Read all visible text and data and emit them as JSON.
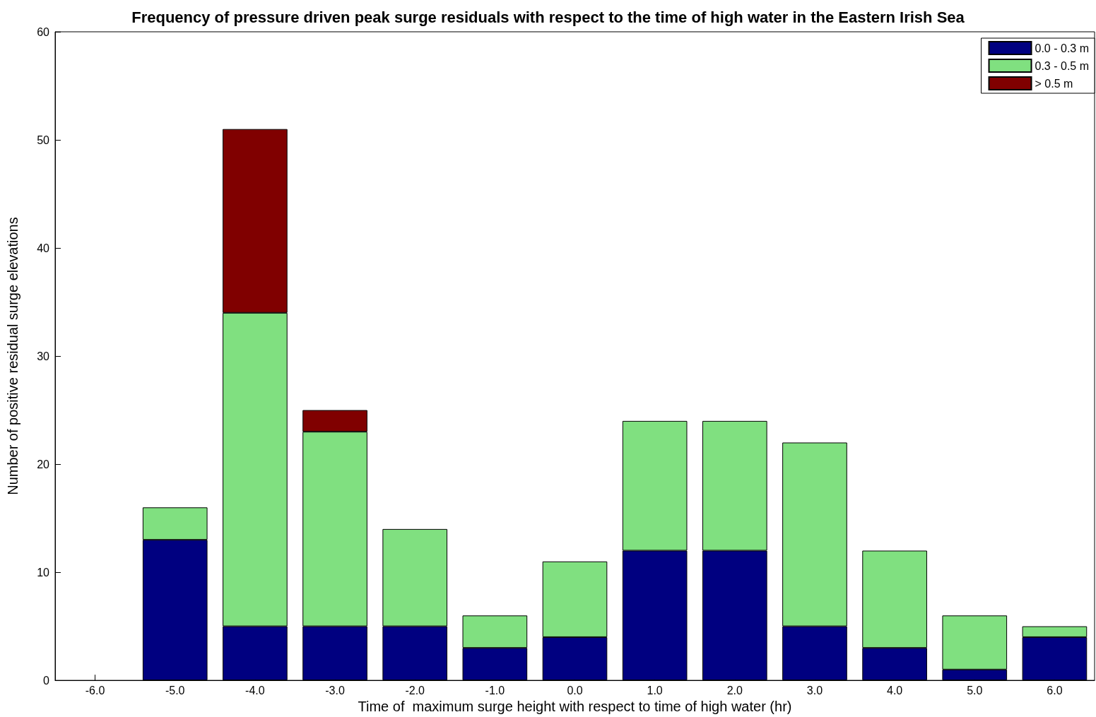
{
  "chart_data": {
    "type": "bar",
    "title": "Frequency of pressure driven peak surge residuals with respect to the time of high water in the Eastern Irish Sea",
    "xlabel": "Time of  maximum surge height with respect to time of high water (hr)",
    "ylabel": "Number of positive residual surge elevations",
    "categories": [
      "-6.0",
      "-5.0",
      "-4.0",
      "-3.0",
      "-2.0",
      "-1.0",
      "0.0",
      "1.0",
      "2.0",
      "3.0",
      "4.0",
      "5.0",
      "6.0"
    ],
    "stacked": true,
    "series": [
      {
        "name": "0.0 - 0.3 m",
        "color": "#000080",
        "values": [
          null,
          13,
          5,
          5,
          5,
          3,
          4,
          12,
          12,
          5,
          3,
          1,
          4
        ]
      },
      {
        "name": "0.3 - 0.5 m",
        "color": "#80e080",
        "values": [
          null,
          3,
          29,
          18,
          9,
          3,
          7,
          12,
          12,
          17,
          9,
          5,
          1
        ]
      },
      {
        "name": "> 0.5 m",
        "color": "#800000",
        "values": [
          null,
          null,
          17,
          2,
          null,
          null,
          null,
          null,
          null,
          null,
          null,
          null,
          null
        ]
      }
    ],
    "ylim": [
      0,
      60
    ],
    "yticks": [
      0,
      10,
      20,
      30,
      40,
      50,
      60
    ],
    "grid": false,
    "legend": "top right"
  }
}
